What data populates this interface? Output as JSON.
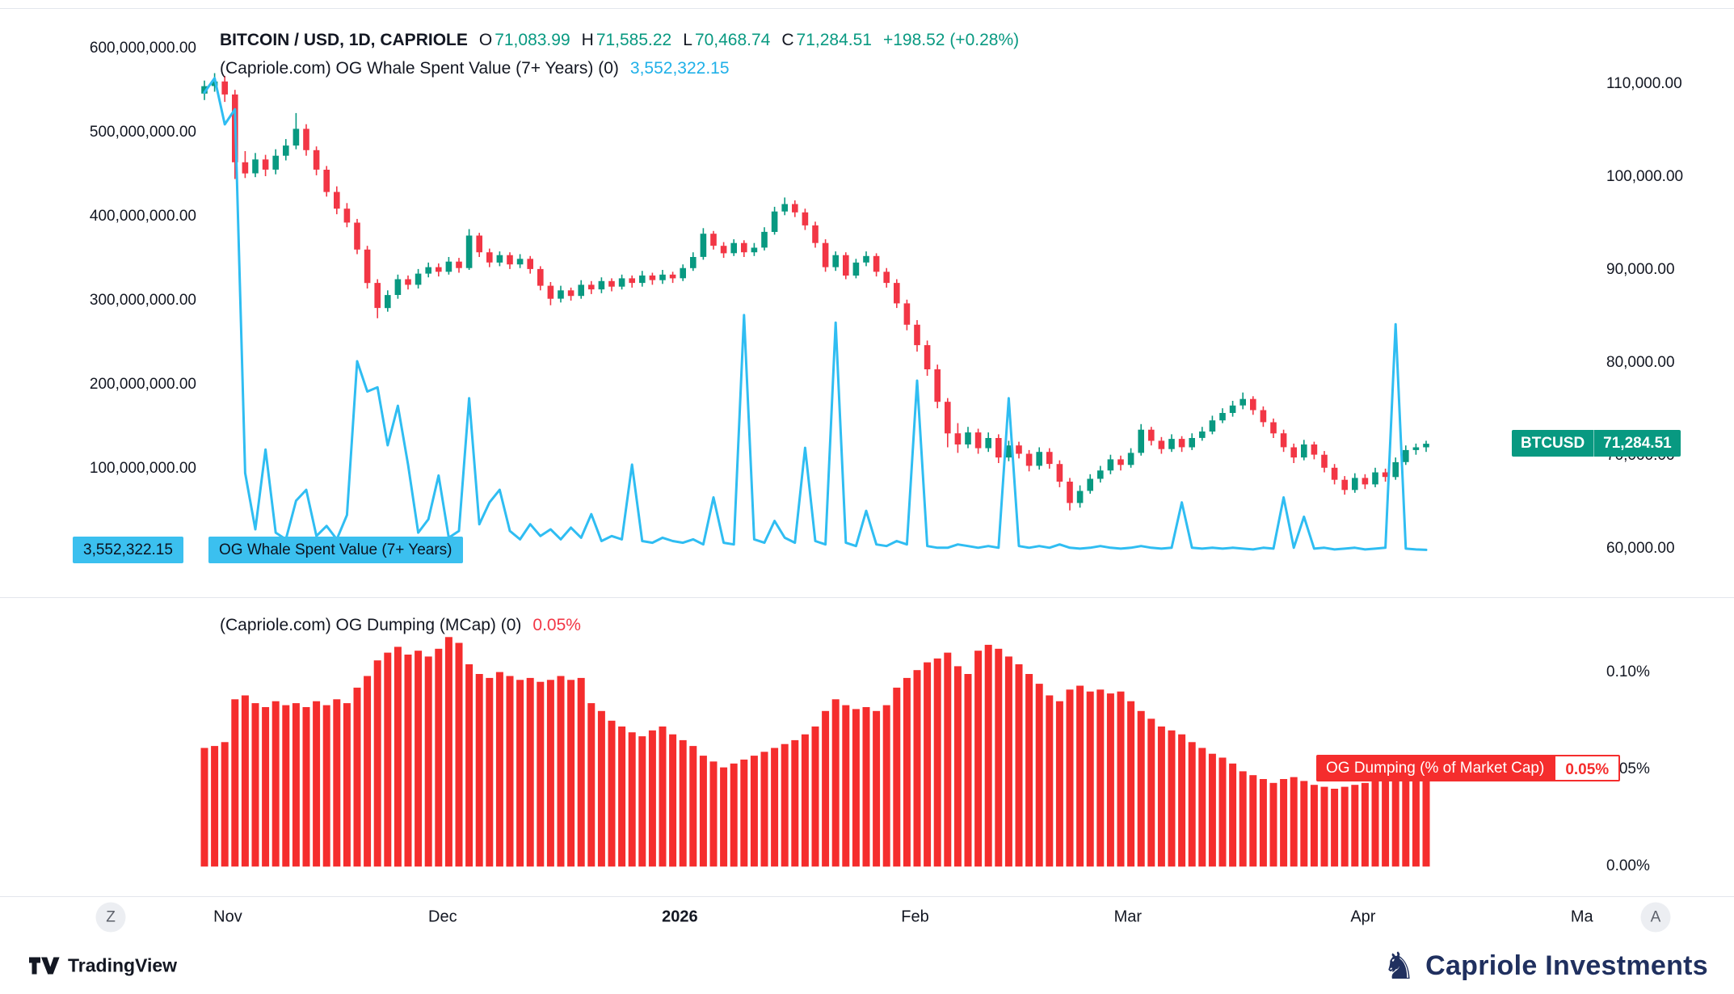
{
  "colors": {
    "up": "#089981",
    "down": "#f23645",
    "cyan": "#2fbdf2",
    "bar": "#f52d2d",
    "navy": "#20305f"
  },
  "header": {
    "symbol": "BITCOIN / USD, 1D, CAPRIOLE",
    "o_label": "O",
    "o": "71,083.99",
    "h_label": "H",
    "h": "71,585.22",
    "l_label": "L",
    "l": "70,468.74",
    "c_label": "C",
    "c": "71,284.51",
    "change": "+198.52 (+0.28%)",
    "indicator1_name": "(Capriole.com) OG Whale Spent Value (7+ Years) (0)",
    "indicator1_value": "3,552,322.15"
  },
  "pane2_header": {
    "name": "(Capriole.com) OG Dumping (MCap) (0)",
    "value": "0.05%"
  },
  "badges": {
    "btcusd_symbol": "BTCUSD",
    "btcusd_price": "71,284.51",
    "whale_value": "3,552,322.15",
    "whale_title": "OG Whale Spent Value (7+ Years)",
    "dumping_title": "OG Dumping (% of Market Cap)",
    "dumping_value": "0.05%"
  },
  "axes": {
    "left_ticks": [
      {
        "label": "600,000,000.00",
        "value_musd": 600
      },
      {
        "label": "500,000,000.00",
        "value_musd": 500
      },
      {
        "label": "400,000,000.00",
        "value_musd": 400
      },
      {
        "label": "300,000,000.00",
        "value_musd": 300
      },
      {
        "label": "200,000,000.00",
        "value_musd": 200
      },
      {
        "label": "100,000,000.00",
        "value_musd": 100
      }
    ],
    "right_ticks": [
      {
        "label": "110,000.00",
        "value_kusd": 110
      },
      {
        "label": "100,000.00",
        "value_kusd": 100
      },
      {
        "label": "90,000.00",
        "value_kusd": 90
      },
      {
        "label": "80,000.00",
        "value_kusd": 80
      },
      {
        "label": "70,000.00",
        "value_kusd": 70
      },
      {
        "label": "60,000.00",
        "value_kusd": 60
      }
    ],
    "pane2_ticks": [
      {
        "label": "0.10%",
        "value_pct": 0.1
      },
      {
        "label": "0.05%",
        "value_pct": 0.05
      },
      {
        "label": "0.00%",
        "value_pct": 0.0
      }
    ],
    "time_ticks": [
      {
        "label": "Nov",
        "i": 2.3,
        "bold": false
      },
      {
        "label": "Dec",
        "i": 23.4,
        "bold": false
      },
      {
        "label": "2026",
        "i": 46.7,
        "bold": true
      },
      {
        "label": "Feb",
        "i": 69.8,
        "bold": false
      },
      {
        "label": "Mar",
        "i": 90.7,
        "bold": false
      },
      {
        "label": "Apr",
        "i": 113.8,
        "bold": false
      },
      {
        "label": "Ma",
        "i": 135.3,
        "bold": false
      }
    ],
    "left_button": "Z",
    "right_button": "A"
  },
  "footer": {
    "tradingview": "TradingView",
    "capriole": "Capriole Investments"
  },
  "chart_data": {
    "type": "candlestick+line+bar",
    "title": "BITCOIN / USD, 1D, CAPRIOLE with OG Whale Spent Value (7+ Years) and OG Dumping (MCap)",
    "x_axis": {
      "unit": "days",
      "month_labels": [
        "Nov",
        "Dec",
        "2026",
        "Feb",
        "Mar",
        "Apr",
        "Ma"
      ]
    },
    "panes": [
      {
        "type": "candlestick",
        "name": "BITCOIN / USD 1D",
        "price_unit": "thousand USD",
        "right_scale_kusd": [
          55.1,
          116.9
        ],
        "left_scale_musd": [
          -49,
          634
        ],
        "ohlc_today": {
          "open": 71083.99,
          "high": 71585.22,
          "low": 70468.74,
          "close": 71284.51,
          "change": 198.52,
          "change_pct": 0.28
        },
        "candles_kusd": [
          [
            109.0,
            110.4,
            108.3,
            109.8
          ],
          [
            109.8,
            111.2,
            109.2,
            110.3
          ],
          [
            110.3,
            110.9,
            108.1,
            108.9
          ],
          [
            108.9,
            109.4,
            99.8,
            101.6
          ],
          [
            101.6,
            102.8,
            99.9,
            100.4
          ],
          [
            100.4,
            102.6,
            100.0,
            101.9
          ],
          [
            101.9,
            102.4,
            100.1,
            100.8
          ],
          [
            100.8,
            103.0,
            100.3,
            102.3
          ],
          [
            102.3,
            104.1,
            101.8,
            103.4
          ],
          [
            103.4,
            106.9,
            103.0,
            105.2
          ],
          [
            105.2,
            105.7,
            102.3,
            102.9
          ],
          [
            102.9,
            103.3,
            100.2,
            100.8
          ],
          [
            100.8,
            101.2,
            97.9,
            98.4
          ],
          [
            98.4,
            99.0,
            96.0,
            96.6
          ],
          [
            96.6,
            97.2,
            94.6,
            95.1
          ],
          [
            95.1,
            95.5,
            91.7,
            92.2
          ],
          [
            92.2,
            92.6,
            88.0,
            88.6
          ],
          [
            88.6,
            89.0,
            84.8,
            85.9
          ],
          [
            85.9,
            87.8,
            85.5,
            87.3
          ],
          [
            87.3,
            89.5,
            86.9,
            89.0
          ],
          [
            89.0,
            89.4,
            87.9,
            88.4
          ],
          [
            88.4,
            90.1,
            88.0,
            89.6
          ],
          [
            89.6,
            90.8,
            89.2,
            90.3
          ],
          [
            90.3,
            90.7,
            89.3,
            89.8
          ],
          [
            89.8,
            91.4,
            89.5,
            90.9
          ],
          [
            90.9,
            91.3,
            89.7,
            90.2
          ],
          [
            90.2,
            94.4,
            90.0,
            93.7
          ],
          [
            93.7,
            94.0,
            91.4,
            91.9
          ],
          [
            91.9,
            92.3,
            90.3,
            90.8
          ],
          [
            90.8,
            92.0,
            90.4,
            91.6
          ],
          [
            91.6,
            91.9,
            90.1,
            90.6
          ],
          [
            90.6,
            91.7,
            90.2,
            91.2
          ],
          [
            91.2,
            91.5,
            89.6,
            90.1
          ],
          [
            90.1,
            90.4,
            87.8,
            88.3
          ],
          [
            88.3,
            88.7,
            86.2,
            86.9
          ],
          [
            86.9,
            88.3,
            86.5,
            87.8
          ],
          [
            87.8,
            88.1,
            86.7,
            87.2
          ],
          [
            87.2,
            88.9,
            86.9,
            88.4
          ],
          [
            88.4,
            88.8,
            87.4,
            87.9
          ],
          [
            87.9,
            89.2,
            87.5,
            88.8
          ],
          [
            88.8,
            89.1,
            87.7,
            88.2
          ],
          [
            88.2,
            89.5,
            87.9,
            89.1
          ],
          [
            89.1,
            89.4,
            88.1,
            88.6
          ],
          [
            88.6,
            89.9,
            88.2,
            89.4
          ],
          [
            89.4,
            89.7,
            88.4,
            88.9
          ],
          [
            88.9,
            90.0,
            88.5,
            89.5
          ],
          [
            89.5,
            89.8,
            88.6,
            89.1
          ],
          [
            89.1,
            90.6,
            88.8,
            90.2
          ],
          [
            90.2,
            91.9,
            89.9,
            91.4
          ],
          [
            91.4,
            94.5,
            91.1,
            93.9
          ],
          [
            93.9,
            94.2,
            92.2,
            92.6
          ],
          [
            92.6,
            93.0,
            91.3,
            91.8
          ],
          [
            91.8,
            93.3,
            91.5,
            92.9
          ],
          [
            92.9,
            93.2,
            91.4,
            91.9
          ],
          [
            91.9,
            92.9,
            91.5,
            92.4
          ],
          [
            92.4,
            94.6,
            92.1,
            94.1
          ],
          [
            94.1,
            96.8,
            93.8,
            96.3
          ],
          [
            96.3,
            97.8,
            95.9,
            97.1
          ],
          [
            97.1,
            97.5,
            95.7,
            96.2
          ],
          [
            96.2,
            96.6,
            94.3,
            94.8
          ],
          [
            94.8,
            95.2,
            92.4,
            92.9
          ],
          [
            92.9,
            93.3,
            89.8,
            90.3
          ],
          [
            90.3,
            92.0,
            89.9,
            91.6
          ],
          [
            91.6,
            91.9,
            89.0,
            89.4
          ],
          [
            89.4,
            91.2,
            89.1,
            90.8
          ],
          [
            90.8,
            92.0,
            90.4,
            91.5
          ],
          [
            91.5,
            91.8,
            89.3,
            89.8
          ],
          [
            89.8,
            90.2,
            88.1,
            88.6
          ],
          [
            88.6,
            89.0,
            85.9,
            86.4
          ],
          [
            86.4,
            86.8,
            83.5,
            84.1
          ],
          [
            84.1,
            84.6,
            81.2,
            81.9
          ],
          [
            81.9,
            82.4,
            78.6,
            79.3
          ],
          [
            79.3,
            79.8,
            75.1,
            75.8
          ],
          [
            75.8,
            76.2,
            70.9,
            72.4
          ],
          [
            72.4,
            73.5,
            70.3,
            71.2
          ],
          [
            71.2,
            73.1,
            70.8,
            72.5
          ],
          [
            72.5,
            72.9,
            70.2,
            70.8
          ],
          [
            70.8,
            72.5,
            70.4,
            71.9
          ],
          [
            71.9,
            72.3,
            69.2,
            69.8
          ],
          [
            69.8,
            71.6,
            69.4,
            71.1
          ],
          [
            71.1,
            71.5,
            69.7,
            70.2
          ],
          [
            70.2,
            70.6,
            68.3,
            68.9
          ],
          [
            68.9,
            70.9,
            68.5,
            70.4
          ],
          [
            70.4,
            70.8,
            68.6,
            69.1
          ],
          [
            69.1,
            69.5,
            66.6,
            67.2
          ],
          [
            67.2,
            67.6,
            64.1,
            64.9
          ],
          [
            64.9,
            66.8,
            64.4,
            66.2
          ],
          [
            66.2,
            68.0,
            65.9,
            67.5
          ],
          [
            67.5,
            68.9,
            67.1,
            68.4
          ],
          [
            68.4,
            70.1,
            68.0,
            69.6
          ],
          [
            69.6,
            70.0,
            68.4,
            69.0
          ],
          [
            69.0,
            70.8,
            68.7,
            70.3
          ],
          [
            70.3,
            73.4,
            70.0,
            72.8
          ],
          [
            72.8,
            73.1,
            71.1,
            71.6
          ],
          [
            71.6,
            72.0,
            70.2,
            70.7
          ],
          [
            70.7,
            72.3,
            70.4,
            71.8
          ],
          [
            71.8,
            72.1,
            70.4,
            70.9
          ],
          [
            70.9,
            72.4,
            70.6,
            71.9
          ],
          [
            71.9,
            73.1,
            71.6,
            72.6
          ],
          [
            72.6,
            74.3,
            72.3,
            73.8
          ],
          [
            73.8,
            75.1,
            73.5,
            74.6
          ],
          [
            74.6,
            75.9,
            74.2,
            75.4
          ],
          [
            75.4,
            76.8,
            75.0,
            76.1
          ],
          [
            76.1,
            76.4,
            74.4,
            74.9
          ],
          [
            74.9,
            75.3,
            73.1,
            73.6
          ],
          [
            73.6,
            74.0,
            71.9,
            72.4
          ],
          [
            72.4,
            72.8,
            70.4,
            70.9
          ],
          [
            70.9,
            71.3,
            69.2,
            69.8
          ],
          [
            69.8,
            71.7,
            69.5,
            71.2
          ],
          [
            71.2,
            71.5,
            69.6,
            70.1
          ],
          [
            70.1,
            70.5,
            68.2,
            68.7
          ],
          [
            68.7,
            69.1,
            66.9,
            67.4
          ],
          [
            67.4,
            67.8,
            65.8,
            66.3
          ],
          [
            66.3,
            68.1,
            66.0,
            67.6
          ],
          [
            67.6,
            68.0,
            66.4,
            66.9
          ],
          [
            66.9,
            68.7,
            66.6,
            68.2
          ],
          [
            68.2,
            68.6,
            67.2,
            67.7
          ],
          [
            67.7,
            69.8,
            67.4,
            69.3
          ],
          [
            69.3,
            71.1,
            69.0,
            70.6
          ],
          [
            70.6,
            71.3,
            70.1,
            70.9
          ],
          [
            70.9,
            71.6,
            70.4,
            71.284
          ]
        ],
        "line_series_name": "OG Whale Spent Value (7+ Years)",
        "line_unit": "million USD",
        "line_last_value": 3552322.15,
        "line_values_musd": [
          548,
          565,
          510,
          528,
          95,
          28,
          123,
          24,
          16,
          62,
          75,
          20,
          32,
          16,
          45,
          228,
          192,
          197,
          128,
          175,
          105,
          24,
          40,
          92,
          18,
          26,
          184,
          34,
          60,
          75,
          26,
          16,
          34,
          20,
          28,
          16,
          30,
          18,
          46,
          14,
          20,
          16,
          105,
          14,
          12,
          18,
          14,
          12,
          16,
          10,
          66,
          12,
          10,
          283,
          16,
          12,
          38,
          18,
          12,
          125,
          14,
          10,
          274,
          12,
          8,
          50,
          10,
          8,
          14,
          10,
          205,
          8,
          6,
          6,
          10,
          8,
          6,
          8,
          6,
          184,
          8,
          6,
          8,
          6,
          10,
          6,
          5,
          6,
          8,
          6,
          5,
          6,
          8,
          6,
          5,
          6,
          60,
          6,
          5,
          6,
          5,
          6,
          5,
          4,
          6,
          5,
          66,
          6,
          43,
          5,
          6,
          4,
          5,
          6,
          4,
          5,
          6,
          272,
          5,
          4,
          3.552
        ]
      },
      {
        "type": "bar",
        "name": "OG Dumping (MCap)",
        "unit": "% of market cap",
        "scale_pct": [
          -0.014,
          0.136
        ],
        "last_value_pct": 0.05,
        "values": [
          0.061,
          0.062,
          0.064,
          0.086,
          0.088,
          0.084,
          0.082,
          0.085,
          0.083,
          0.084,
          0.082,
          0.085,
          0.083,
          0.086,
          0.084,
          0.092,
          0.098,
          0.106,
          0.11,
          0.113,
          0.109,
          0.111,
          0.108,
          0.112,
          0.118,
          0.115,
          0.104,
          0.099,
          0.097,
          0.1,
          0.098,
          0.096,
          0.097,
          0.095,
          0.096,
          0.098,
          0.096,
          0.097,
          0.084,
          0.08,
          0.075,
          0.072,
          0.069,
          0.067,
          0.07,
          0.072,
          0.068,
          0.065,
          0.062,
          0.057,
          0.054,
          0.051,
          0.053,
          0.055,
          0.057,
          0.059,
          0.061,
          0.063,
          0.065,
          0.068,
          0.072,
          0.08,
          0.086,
          0.083,
          0.081,
          0.082,
          0.08,
          0.083,
          0.092,
          0.097,
          0.101,
          0.105,
          0.107,
          0.11,
          0.103,
          0.099,
          0.111,
          0.114,
          0.112,
          0.108,
          0.104,
          0.099,
          0.094,
          0.088,
          0.085,
          0.091,
          0.093,
          0.09,
          0.091,
          0.089,
          0.09,
          0.085,
          0.08,
          0.076,
          0.072,
          0.07,
          0.068,
          0.064,
          0.061,
          0.058,
          0.056,
          0.053,
          0.049,
          0.047,
          0.045,
          0.043,
          0.045,
          0.046,
          0.044,
          0.042,
          0.041,
          0.04,
          0.041,
          0.042,
          0.043,
          0.044,
          0.045,
          0.046,
          0.048,
          0.049,
          0.05
        ]
      }
    ]
  }
}
